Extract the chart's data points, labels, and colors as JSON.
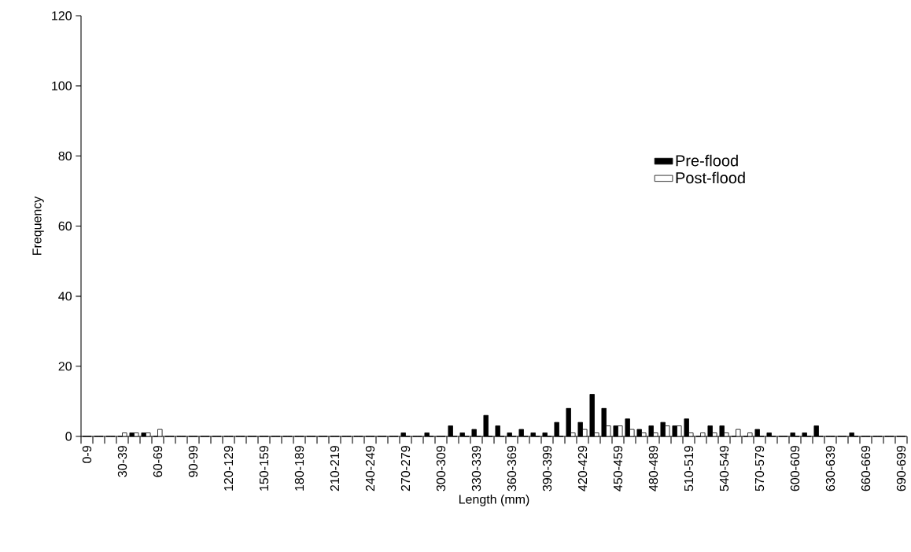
{
  "chart_data": {
    "type": "bar",
    "xlabel": "Length (mm)",
    "ylabel": "Frequency",
    "categories": [
      "0-9",
      null,
      null,
      "30-39",
      null,
      null,
      "60-69",
      null,
      null,
      "90-99",
      null,
      null,
      "120-129",
      null,
      null,
      "150-159",
      null,
      null,
      "180-189",
      null,
      null,
      "210-219",
      null,
      null,
      "240-249",
      null,
      null,
      "270-279",
      null,
      null,
      "300-309",
      null,
      null,
      "330-339",
      null,
      null,
      "360-369",
      null,
      null,
      "390-399",
      null,
      null,
      "420-429",
      null,
      null,
      "450-459",
      null,
      null,
      "480-489",
      null,
      null,
      "510-519",
      null,
      null,
      "540-549",
      null,
      null,
      "570-579",
      null,
      null,
      "600-609",
      null,
      null,
      "630-639",
      null,
      null,
      "660-669",
      null,
      null,
      "690-699"
    ],
    "series": [
      {
        "name": "Pre-flood",
        "color": "#000000",
        "values": [
          0,
          0,
          0,
          0,
          1,
          1,
          0,
          0,
          0,
          0,
          0,
          0,
          0,
          0,
          0,
          0,
          0,
          0,
          0,
          0,
          0,
          0,
          0,
          0,
          0,
          0,
          0,
          1,
          0,
          1,
          0,
          3,
          1,
          2,
          6,
          3,
          1,
          2,
          1,
          1,
          4,
          8,
          4,
          12,
          8,
          3,
          5,
          2,
          3,
          4,
          3,
          5,
          0,
          3,
          3,
          0,
          0,
          2,
          1,
          0,
          1,
          1,
          3,
          0,
          0,
          1,
          0,
          0,
          0,
          0
        ]
      },
      {
        "name": "Post-flood",
        "color": "#ffffff",
        "values": [
          0,
          0,
          0,
          1,
          1,
          1,
          2,
          0,
          0,
          0,
          0,
          0,
          0,
          0,
          0,
          0,
          0,
          0,
          0,
          0,
          0,
          0,
          0,
          0,
          0,
          0,
          0,
          0,
          0,
          0,
          0,
          0,
          0,
          0,
          0,
          0,
          0,
          0,
          0,
          0,
          0,
          1,
          2,
          1,
          3,
          3,
          2,
          1,
          1,
          3,
          3,
          1,
          1,
          1,
          1,
          2,
          1,
          0,
          0,
          0,
          0,
          0,
          0,
          0,
          0,
          0,
          0,
          0,
          0,
          0
        ]
      }
    ],
    "ylim": [
      0,
      120
    ],
    "yticks": [
      0,
      20,
      40,
      60,
      80,
      100,
      120
    ],
    "legend": "right"
  }
}
